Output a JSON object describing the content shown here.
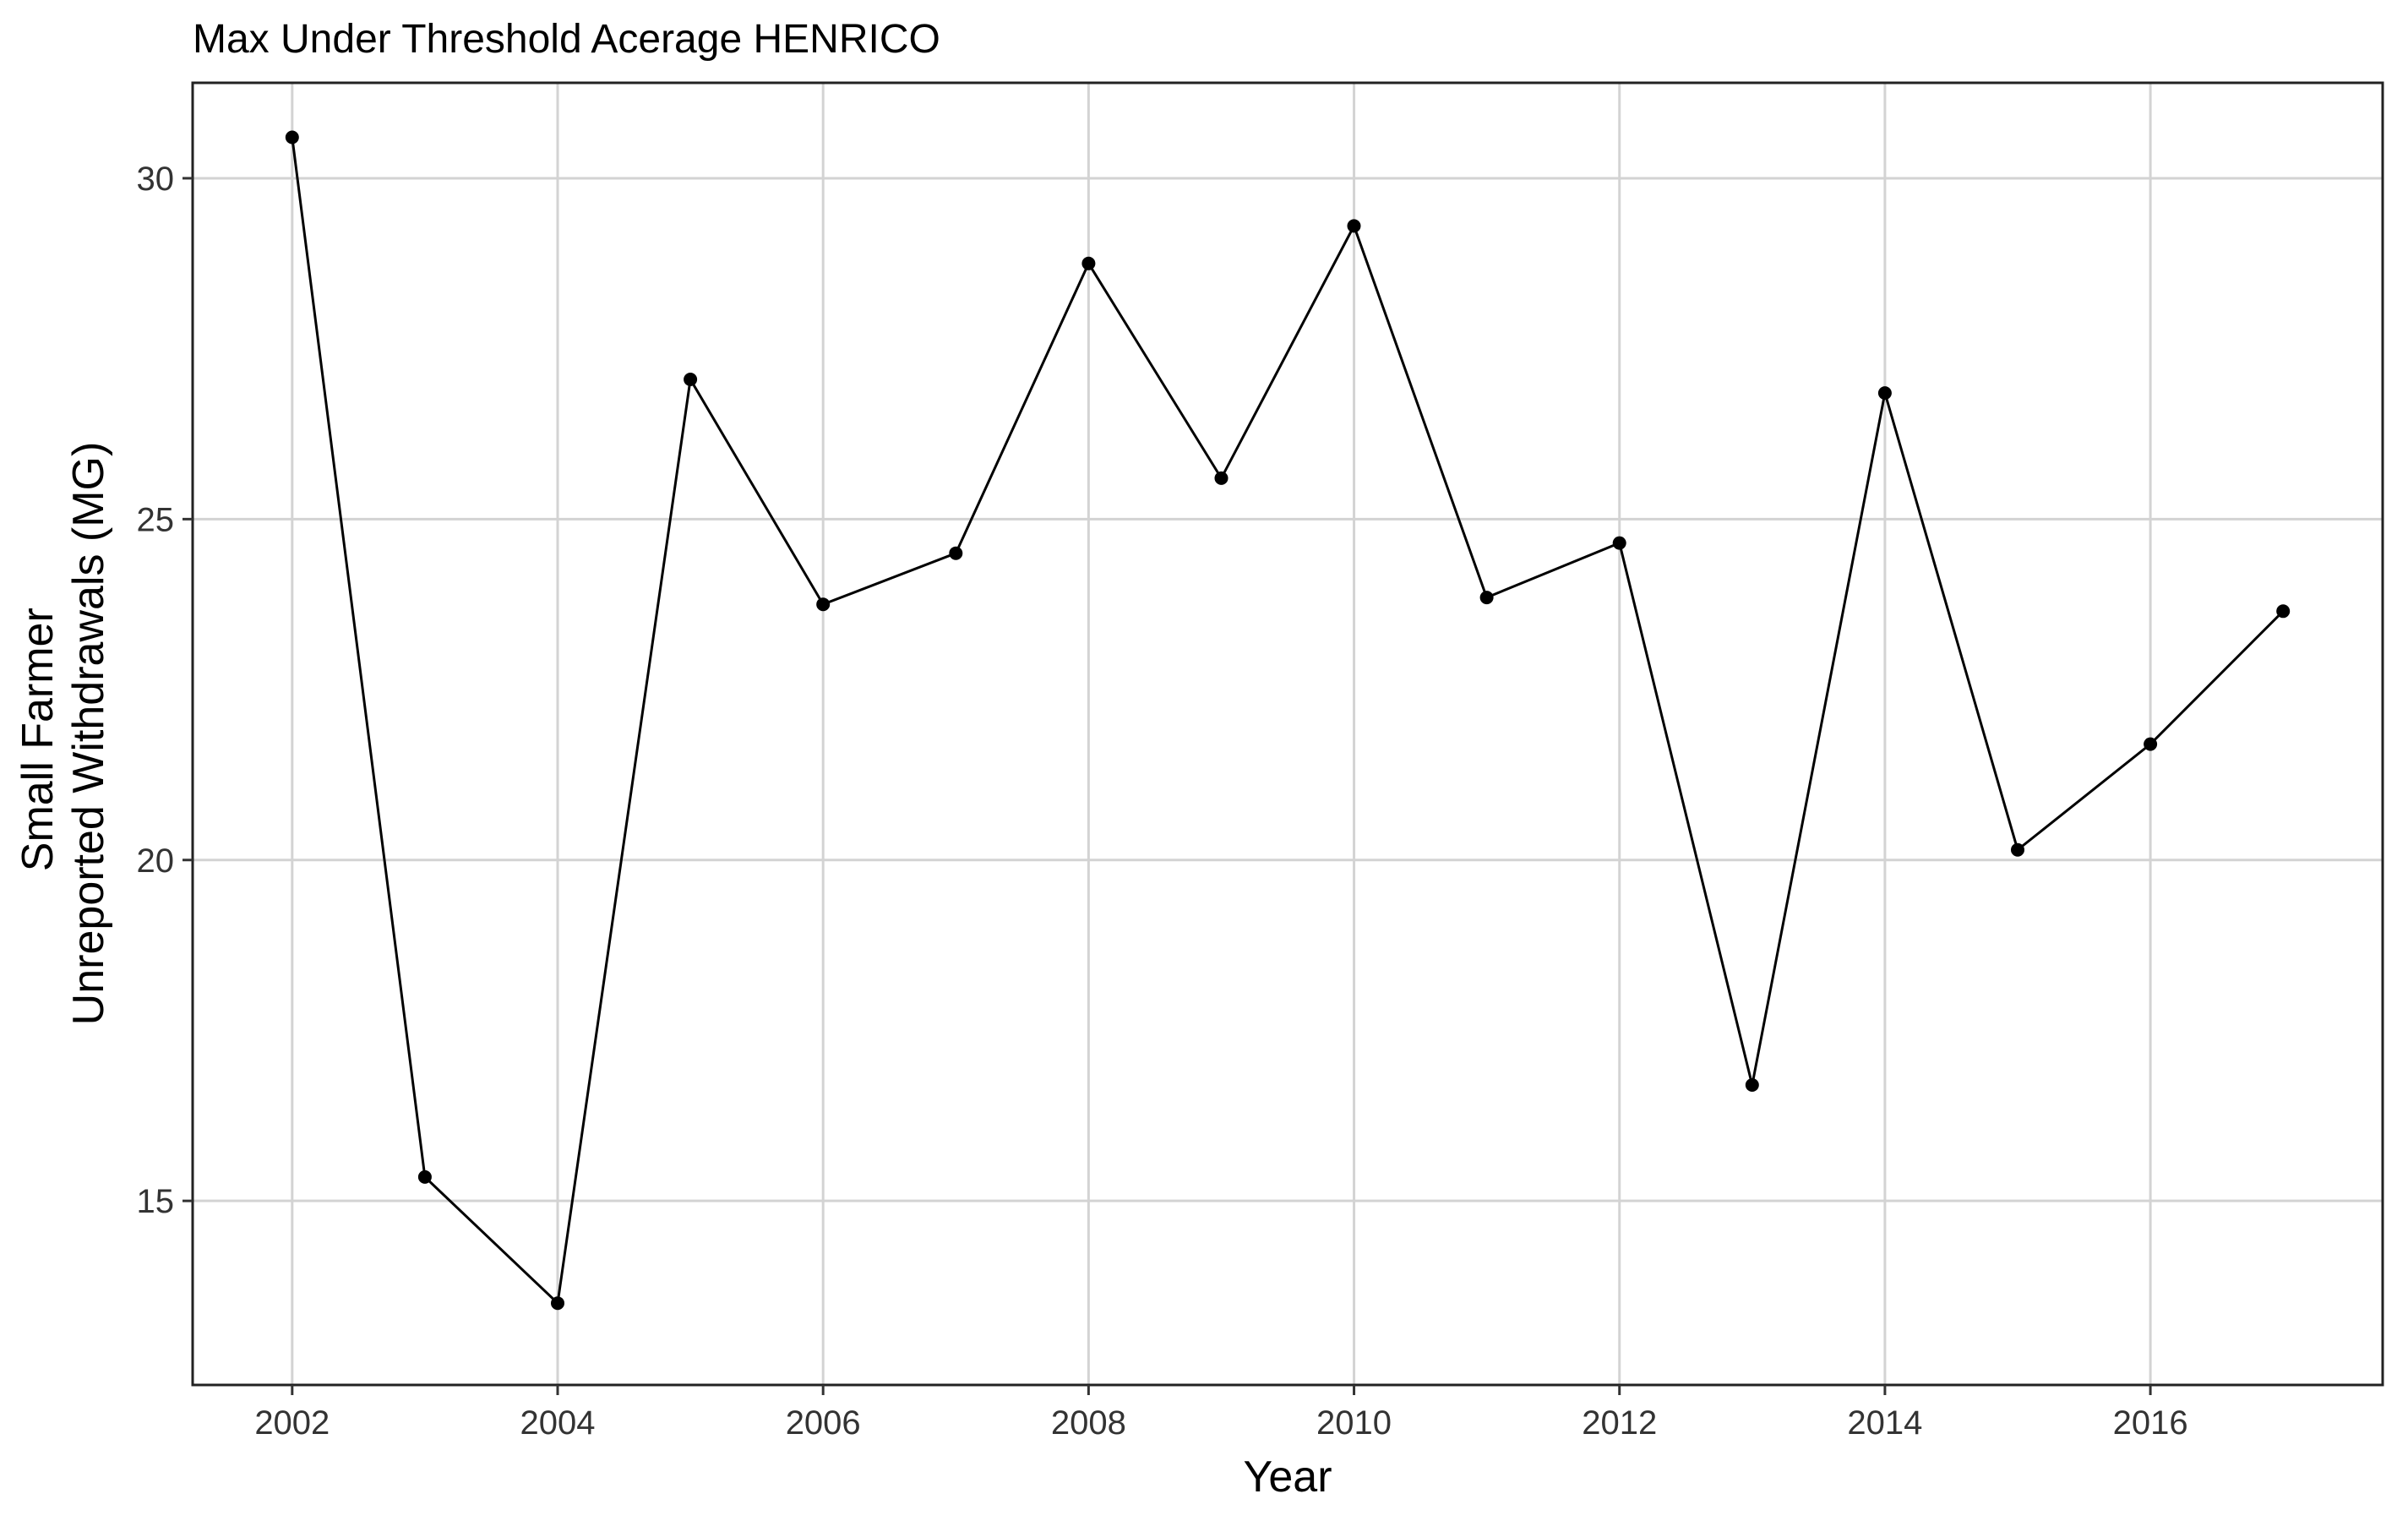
{
  "chart_data": {
    "type": "line",
    "title": "Max Under Threshold Acerage HENRICO",
    "xlabel": "Year",
    "ylabel_lines": [
      "Small Farmer",
      "Unreported Withdrawals (MG)"
    ],
    "x": [
      2002,
      2003,
      2004,
      2005,
      2006,
      2007,
      2008,
      2009,
      2010,
      2011,
      2012,
      2013,
      2014,
      2015,
      2016,
      2017
    ],
    "series": [
      {
        "values": [
          30.6,
          15.35,
          13.5,
          27.05,
          23.75,
          24.5,
          28.75,
          25.6,
          29.3,
          23.85,
          24.65,
          16.7,
          26.85,
          20.15,
          21.7,
          23.65
        ]
      }
    ],
    "x_ticks": [
      "2002",
      "2004",
      "2006",
      "2008",
      "2010",
      "2012",
      "2014",
      "2016"
    ],
    "y_ticks": [
      "15",
      "20",
      "25",
      "30"
    ],
    "xlim": [
      2001.25,
      2017.75
    ],
    "ylim": [
      12.3,
      31.4
    ],
    "grid": true,
    "legend": "none",
    "colors": {
      "line": "#000000",
      "grid": "#d3d3d3",
      "panel_border": "#222222"
    }
  }
}
